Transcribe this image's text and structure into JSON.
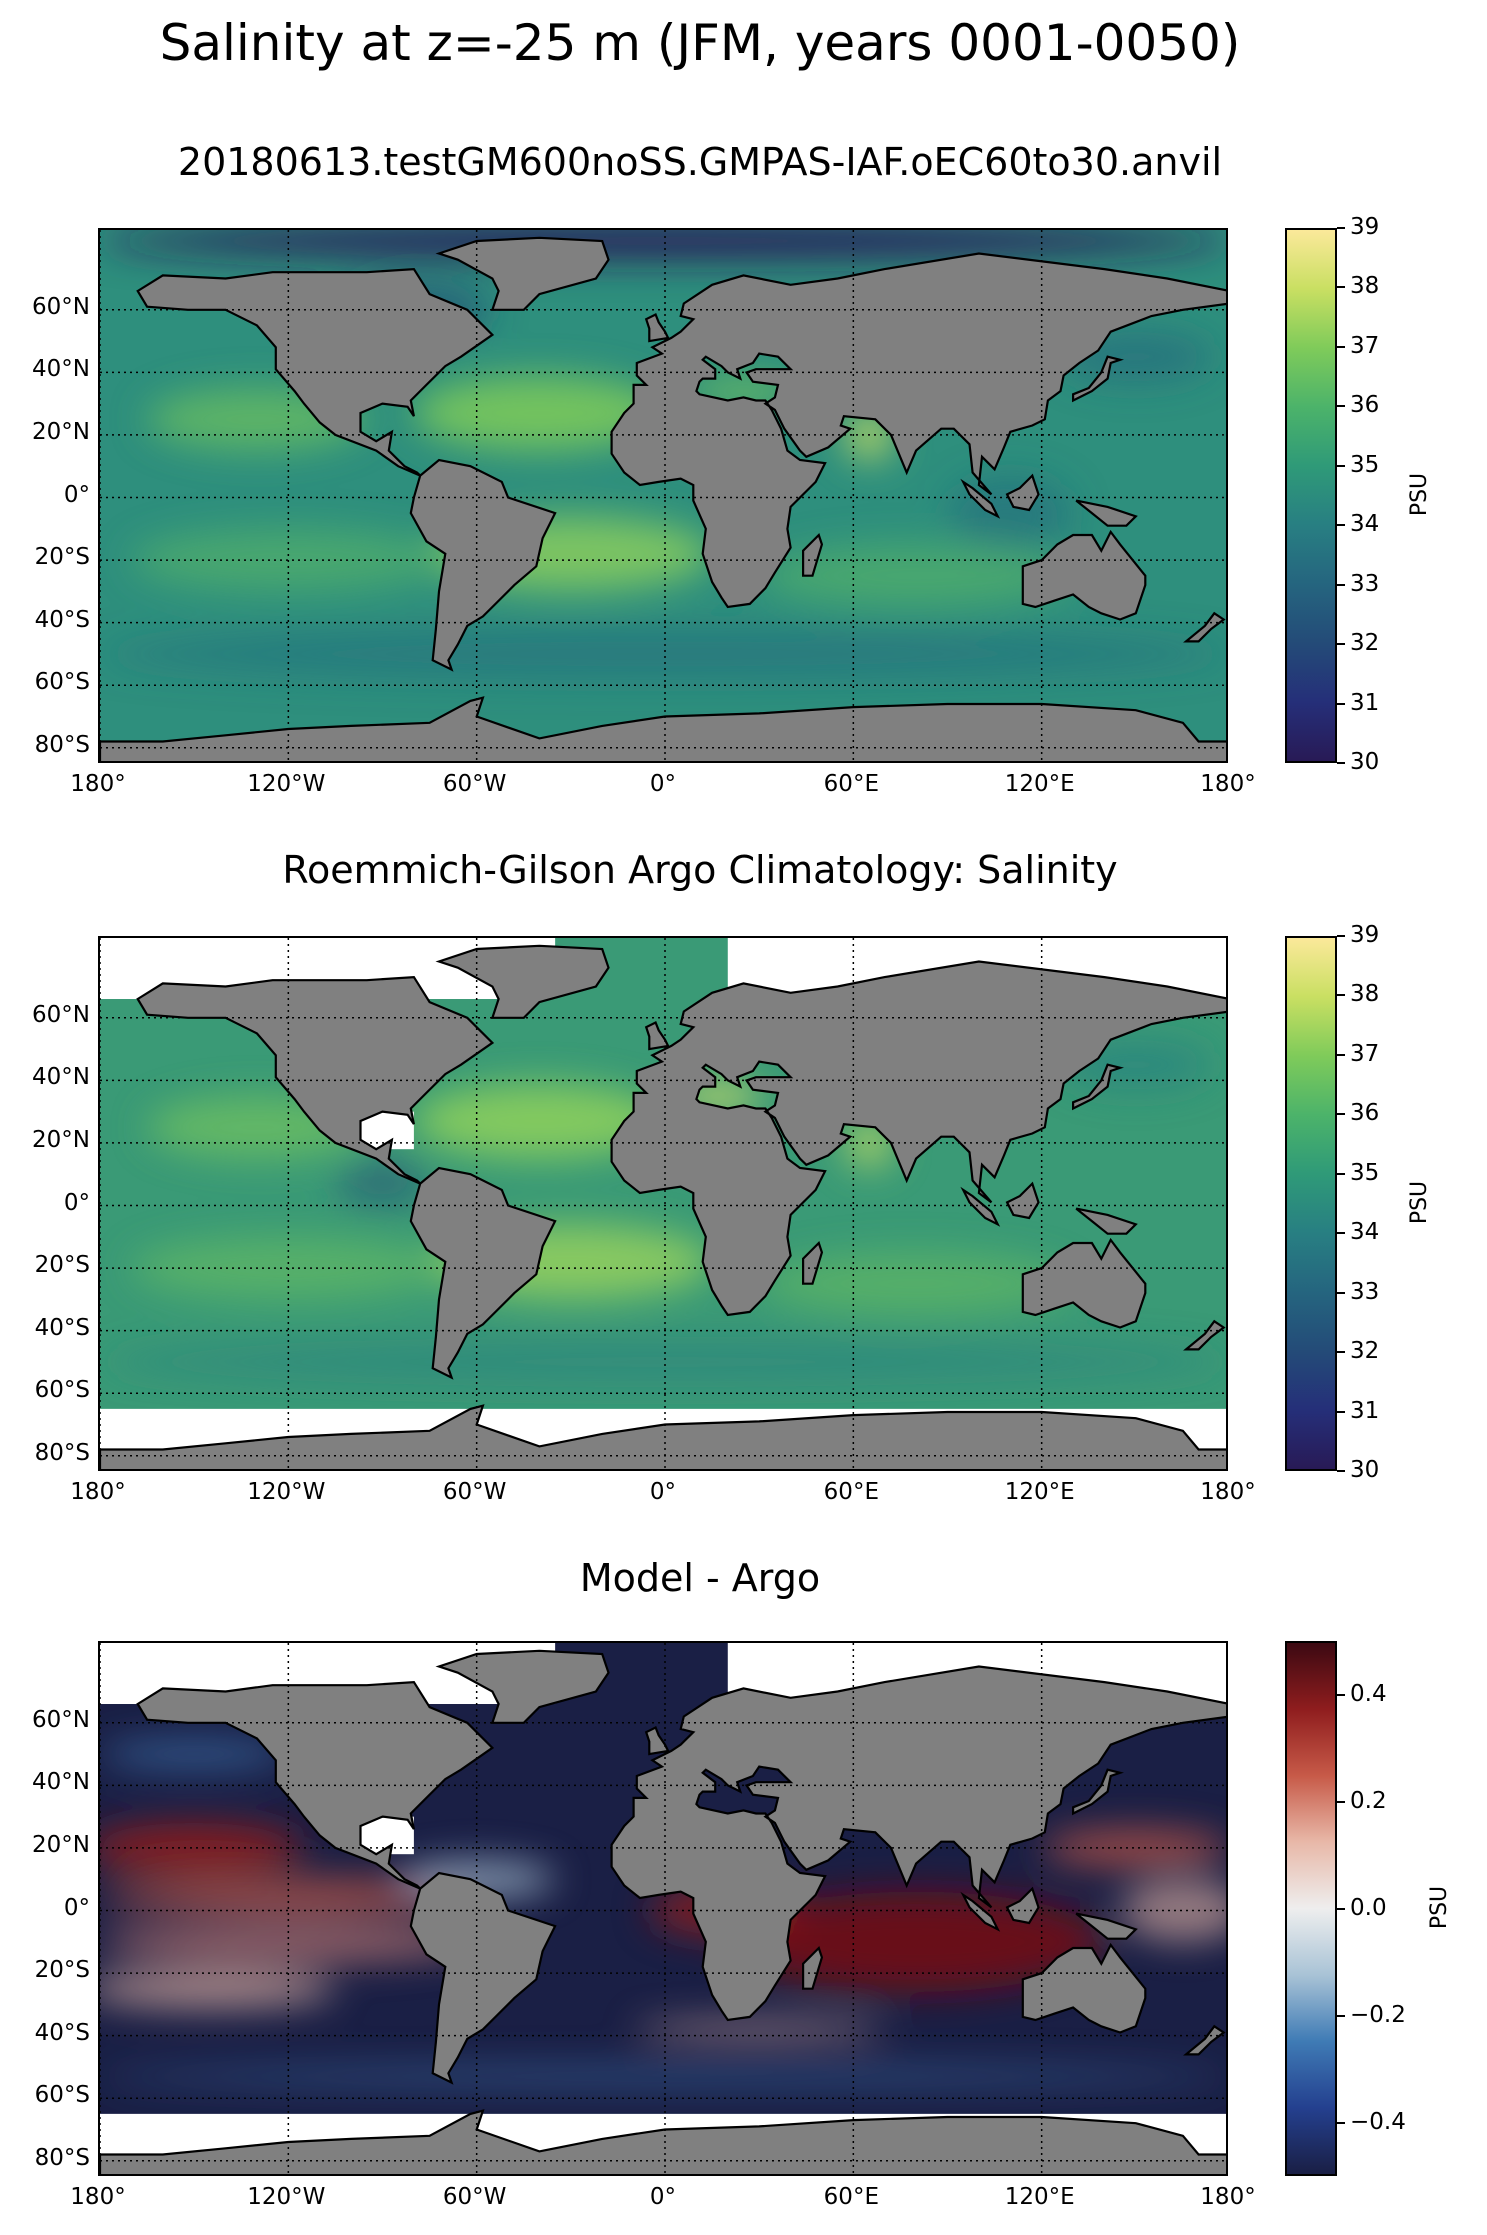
{
  "title": "Salinity at z=-25 m (JFM, years 0001-0050)",
  "lat_ticks": [
    "60°N",
    "40°N",
    "20°N",
    "0°",
    "20°S",
    "40°S",
    "60°S",
    "80°S"
  ],
  "lon_ticks": [
    "180°",
    "120°W",
    "60°W",
    "0°",
    "60°E",
    "120°E",
    "180°"
  ],
  "panels": [
    {
      "title": "20180613.testGM600noSS.GMPAS-IAF.oEC60to30.anvil",
      "colorbar": {
        "label": "PSU",
        "ticks": [
          "39",
          "38",
          "37",
          "36",
          "35",
          "34",
          "33",
          "32",
          "31",
          "30"
        ],
        "range": [
          30,
          39
        ],
        "colors": [
          "#fbe99a",
          "#c9df62",
          "#7fcb5a",
          "#4cb36a",
          "#2f9a78",
          "#287f82",
          "#25657f",
          "#244b78",
          "#252f79",
          "#281a56"
        ]
      }
    },
    {
      "title": "Roemmich-Gilson Argo Climatology: Salinity",
      "colorbar": {
        "label": "PSU",
        "ticks": [
          "39",
          "38",
          "37",
          "36",
          "35",
          "34",
          "33",
          "32",
          "31",
          "30"
        ],
        "range": [
          30,
          39
        ],
        "colors": [
          "#fbe99a",
          "#c9df62",
          "#7fcb5a",
          "#4cb36a",
          "#2f9a78",
          "#287f82",
          "#25657f",
          "#244b78",
          "#252f79",
          "#281a56"
        ]
      }
    },
    {
      "title": "Model - Argo",
      "colorbar": {
        "label": "PSU",
        "ticks": [
          "0.4",
          "0.2",
          "0.0",
          "−0.2",
          "−0.4"
        ],
        "range": [
          -0.5,
          0.5
        ],
        "colors": [
          "#3c0912",
          "#8f1d1e",
          "#c75a48",
          "#e8b8a8",
          "#eeeeee",
          "#a9c3d6",
          "#3f7bb5",
          "#24408f",
          "#1a1f45"
        ]
      }
    }
  ],
  "legend": {
    "land_color": "#808080",
    "missing_color": "#ffffff",
    "graticule": "dotted",
    "projection": "equirectangular"
  }
}
